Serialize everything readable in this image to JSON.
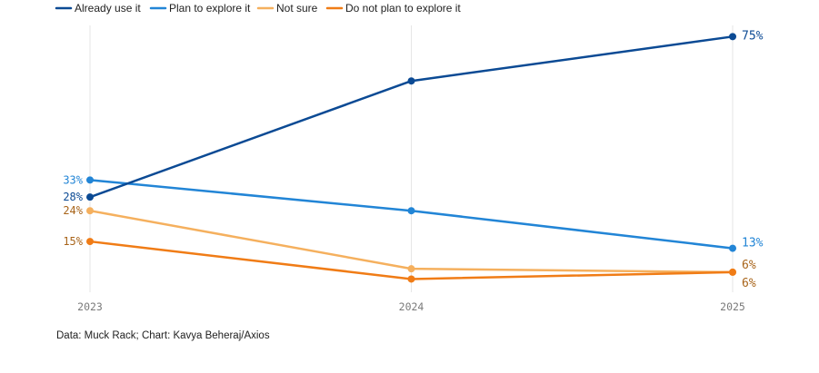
{
  "chart_data": {
    "type": "line",
    "x": [
      "2023",
      "2024",
      "2025"
    ],
    "ylim": [
      0,
      80
    ],
    "grid": "vertical",
    "legend_position": "top-left",
    "series": [
      {
        "name": "Already use it",
        "color": "#0b4a94",
        "values": [
          28,
          62,
          75
        ],
        "labels": [
          "28%",
          "",
          "75%"
        ]
      },
      {
        "name": "Plan to explore it",
        "color": "#2285d6",
        "values": [
          33,
          24,
          13
        ],
        "labels": [
          "33%",
          "",
          "13%"
        ]
      },
      {
        "name": "Not sure",
        "color": "#f5b05e",
        "values": [
          24,
          7,
          6
        ],
        "labels": [
          "24%",
          "",
          "6%"
        ]
      },
      {
        "name": "Do not plan to explore it",
        "color": "#f07c16",
        "values": [
          15,
          4,
          6
        ],
        "labels": [
          "15%",
          "",
          "6%"
        ]
      }
    ],
    "label_colors": {
      "Already use it": "#0b4a94",
      "Plan to explore it": "#2285d6",
      "Not sure": "#a8641a",
      "Do not plan to explore it": "#a8641a"
    }
  },
  "source": "Data: Muck Rack; Chart: Kavya Beheraj/Axios"
}
